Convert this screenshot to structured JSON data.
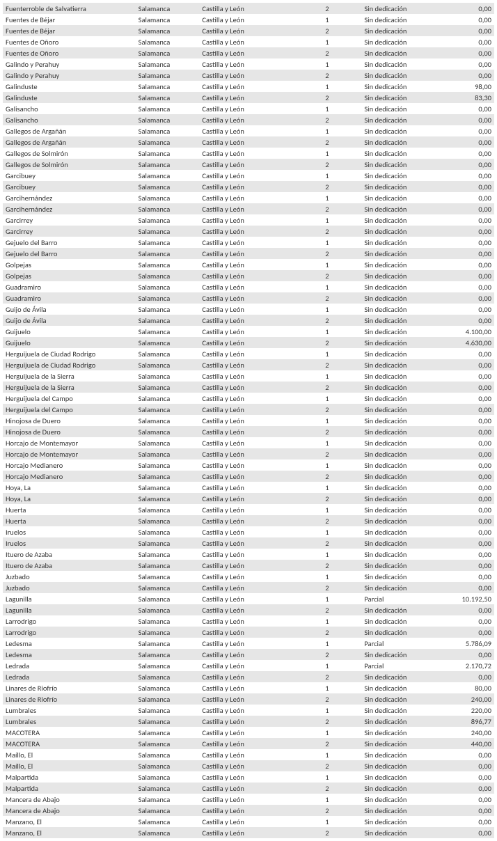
{
  "table": {
    "columns": [
      "municipio",
      "provincia",
      "comunidad",
      "num",
      "dedicacion",
      "importe"
    ],
    "col_align": [
      "left",
      "left",
      "left",
      "center",
      "left",
      "right"
    ],
    "row_stripe_colors": [
      "#e6e6e6",
      "#ffffff"
    ],
    "text_color": "#333333",
    "font_size_pt": 8,
    "rows": [
      [
        "Fuenterroble de Salvatierra",
        "Salamanca",
        "Castilla y León",
        "2",
        "Sin dedicación",
        "0,00"
      ],
      [
        "Fuentes de Béjar",
        "Salamanca",
        "Castilla y León",
        "1",
        "Sin dedicación",
        "0,00"
      ],
      [
        "Fuentes de Béjar",
        "Salamanca",
        "Castilla y León",
        "2",
        "Sin dedicación",
        "0,00"
      ],
      [
        "Fuentes de Oñoro",
        "Salamanca",
        "Castilla y León",
        "1",
        "Sin dedicación",
        "0,00"
      ],
      [
        "Fuentes de Oñoro",
        "Salamanca",
        "Castilla y León",
        "2",
        "Sin dedicación",
        "0,00"
      ],
      [
        "Galindo y Perahuy",
        "Salamanca",
        "Castilla y León",
        "1",
        "Sin dedicación",
        "0,00"
      ],
      [
        "Galindo y Perahuy",
        "Salamanca",
        "Castilla y León",
        "2",
        "Sin dedicación",
        "0,00"
      ],
      [
        "Galinduste",
        "Salamanca",
        "Castilla y León",
        "1",
        "Sin dedicación",
        "98,00"
      ],
      [
        "Galinduste",
        "Salamanca",
        "Castilla y León",
        "2",
        "Sin dedicación",
        "83,30"
      ],
      [
        "Galisancho",
        "Salamanca",
        "Castilla y León",
        "1",
        "Sin dedicación",
        "0,00"
      ],
      [
        "Galisancho",
        "Salamanca",
        "Castilla y León",
        "2",
        "Sin dedicación",
        "0,00"
      ],
      [
        "Gallegos de Argañán",
        "Salamanca",
        "Castilla y León",
        "1",
        "Sin dedicación",
        "0,00"
      ],
      [
        "Gallegos de Argañán",
        "Salamanca",
        "Castilla y León",
        "2",
        "Sin dedicación",
        "0,00"
      ],
      [
        "Gallegos de Solmirón",
        "Salamanca",
        "Castilla y León",
        "1",
        "Sin dedicación",
        "0,00"
      ],
      [
        "Gallegos de Solmirón",
        "Salamanca",
        "Castilla y León",
        "2",
        "Sin dedicación",
        "0,00"
      ],
      [
        "Garcibuey",
        "Salamanca",
        "Castilla y León",
        "1",
        "Sin dedicación",
        "0,00"
      ],
      [
        "Garcibuey",
        "Salamanca",
        "Castilla y León",
        "2",
        "Sin dedicación",
        "0,00"
      ],
      [
        "Garcihernández",
        "Salamanca",
        "Castilla y León",
        "1",
        "Sin dedicación",
        "0,00"
      ],
      [
        "Garcihernández",
        "Salamanca",
        "Castilla y León",
        "2",
        "Sin dedicación",
        "0,00"
      ],
      [
        "Garcirrey",
        "Salamanca",
        "Castilla y León",
        "1",
        "Sin dedicación",
        "0,00"
      ],
      [
        "Garcirrey",
        "Salamanca",
        "Castilla y León",
        "2",
        "Sin dedicación",
        "0,00"
      ],
      [
        "Gejuelo del Barro",
        "Salamanca",
        "Castilla y León",
        "1",
        "Sin dedicación",
        "0,00"
      ],
      [
        "Gejuelo del Barro",
        "Salamanca",
        "Castilla y León",
        "2",
        "Sin dedicación",
        "0,00"
      ],
      [
        "Golpejas",
        "Salamanca",
        "Castilla y León",
        "1",
        "Sin dedicación",
        "0,00"
      ],
      [
        "Golpejas",
        "Salamanca",
        "Castilla y León",
        "2",
        "Sin dedicación",
        "0,00"
      ],
      [
        "Guadramiro",
        "Salamanca",
        "Castilla y León",
        "1",
        "Sin dedicación",
        "0,00"
      ],
      [
        "Guadramiro",
        "Salamanca",
        "Castilla y León",
        "2",
        "Sin dedicación",
        "0,00"
      ],
      [
        "Guijo de Ávila",
        "Salamanca",
        "Castilla y León",
        "1",
        "Sin dedicación",
        "0,00"
      ],
      [
        "Guijo de Ávila",
        "Salamanca",
        "Castilla y León",
        "2",
        "Sin dedicación",
        "0,00"
      ],
      [
        "Guijuelo",
        "Salamanca",
        "Castilla y León",
        "1",
        "Sin dedicación",
        "4.100,00"
      ],
      [
        "Guijuelo",
        "Salamanca",
        "Castilla y León",
        "2",
        "Sin dedicación",
        "4.630,00"
      ],
      [
        "Herguijuela de Ciudad Rodrigo",
        "Salamanca",
        "Castilla y León",
        "1",
        "Sin dedicación",
        "0,00"
      ],
      [
        "Herguijuela de Ciudad Rodrigo",
        "Salamanca",
        "Castilla y León",
        "2",
        "Sin dedicación",
        "0,00"
      ],
      [
        "Herguijuela de la Sierra",
        "Salamanca",
        "Castilla y León",
        "1",
        "Sin dedicación",
        "0,00"
      ],
      [
        "Herguijuela de la Sierra",
        "Salamanca",
        "Castilla y León",
        "2",
        "Sin dedicación",
        "0,00"
      ],
      [
        "Herguijuela del Campo",
        "Salamanca",
        "Castilla y León",
        "1",
        "Sin dedicación",
        "0,00"
      ],
      [
        "Herguijuela del Campo",
        "Salamanca",
        "Castilla y León",
        "2",
        "Sin dedicación",
        "0,00"
      ],
      [
        "Hinojosa de Duero",
        "Salamanca",
        "Castilla y León",
        "1",
        "Sin dedicación",
        "0,00"
      ],
      [
        "Hinojosa de Duero",
        "Salamanca",
        "Castilla y León",
        "2",
        "Sin dedicación",
        "0,00"
      ],
      [
        "Horcajo de Montemayor",
        "Salamanca",
        "Castilla y León",
        "1",
        "Sin dedicación",
        "0,00"
      ],
      [
        "Horcajo de Montemayor",
        "Salamanca",
        "Castilla y León",
        "2",
        "Sin dedicación",
        "0,00"
      ],
      [
        "Horcajo Medianero",
        "Salamanca",
        "Castilla y León",
        "1",
        "Sin dedicación",
        "0,00"
      ],
      [
        "Horcajo Medianero",
        "Salamanca",
        "Castilla y León",
        "2",
        "Sin dedicación",
        "0,00"
      ],
      [
        "Hoya, La",
        "Salamanca",
        "Castilla y León",
        "1",
        "Sin dedicación",
        "0,00"
      ],
      [
        "Hoya, La",
        "Salamanca",
        "Castilla y León",
        "2",
        "Sin dedicación",
        "0,00"
      ],
      [
        "Huerta",
        "Salamanca",
        "Castilla y León",
        "1",
        "Sin dedicación",
        "0,00"
      ],
      [
        "Huerta",
        "Salamanca",
        "Castilla y León",
        "2",
        "Sin dedicación",
        "0,00"
      ],
      [
        "Iruelos",
        "Salamanca",
        "Castilla y León",
        "1",
        "Sin dedicación",
        "0,00"
      ],
      [
        "Iruelos",
        "Salamanca",
        "Castilla y León",
        "2",
        "Sin dedicación",
        "0,00"
      ],
      [
        "Ituero de Azaba",
        "Salamanca",
        "Castilla y León",
        "1",
        "Sin dedicación",
        "0,00"
      ],
      [
        "Ituero de Azaba",
        "Salamanca",
        "Castilla y León",
        "2",
        "Sin dedicación",
        "0,00"
      ],
      [
        "Juzbado",
        "Salamanca",
        "Castilla y León",
        "1",
        "Sin dedicación",
        "0,00"
      ],
      [
        "Juzbado",
        "Salamanca",
        "Castilla y León",
        "2",
        "Sin dedicación",
        "0,00"
      ],
      [
        "Lagunilla",
        "Salamanca",
        "Castilla y León",
        "1",
        "Parcial",
        "10.192,50"
      ],
      [
        "Lagunilla",
        "Salamanca",
        "Castilla y León",
        "2",
        "Sin dedicación",
        "0,00"
      ],
      [
        "Larrodrigo",
        "Salamanca",
        "Castilla y León",
        "1",
        "Sin dedicación",
        "0,00"
      ],
      [
        "Larrodrigo",
        "Salamanca",
        "Castilla y León",
        "2",
        "Sin dedicación",
        "0,00"
      ],
      [
        "Ledesma",
        "Salamanca",
        "Castilla y León",
        "1",
        "Parcial",
        "5.786,09"
      ],
      [
        "Ledesma",
        "Salamanca",
        "Castilla y León",
        "2",
        "Sin dedicación",
        "0,00"
      ],
      [
        "Ledrada",
        "Salamanca",
        "Castilla y León",
        "1",
        "Parcial",
        "2.170,72"
      ],
      [
        "Ledrada",
        "Salamanca",
        "Castilla y León",
        "2",
        "Sin dedicación",
        "0,00"
      ],
      [
        "Linares de Riofrío",
        "Salamanca",
        "Castilla y León",
        "1",
        "Sin dedicación",
        "80,00"
      ],
      [
        "Linares de Riofrío",
        "Salamanca",
        "Castilla y León",
        "2",
        "Sin dedicación",
        "240,00"
      ],
      [
        "Lumbrales",
        "Salamanca",
        "Castilla y León",
        "1",
        "Sin dedicación",
        "220,00"
      ],
      [
        "Lumbrales",
        "Salamanca",
        "Castilla y León",
        "2",
        "Sin dedicación",
        "896,77"
      ],
      [
        "MACOTERA",
        "Salamanca",
        "Castilla y León",
        "1",
        "Sin dedicación",
        "240,00"
      ],
      [
        "MACOTERA",
        "Salamanca",
        "Castilla y León",
        "2",
        "Sin dedicación",
        "440,00"
      ],
      [
        "Maíllo, El",
        "Salamanca",
        "Castilla y León",
        "1",
        "Sin dedicación",
        "0,00"
      ],
      [
        "Maíllo, El",
        "Salamanca",
        "Castilla y León",
        "2",
        "Sin dedicación",
        "0,00"
      ],
      [
        "Malpartida",
        "Salamanca",
        "Castilla y León",
        "1",
        "Sin dedicación",
        "0,00"
      ],
      [
        "Malpartida",
        "Salamanca",
        "Castilla y León",
        "2",
        "Sin dedicación",
        "0,00"
      ],
      [
        "Mancera de Abajo",
        "Salamanca",
        "Castilla y León",
        "1",
        "Sin dedicación",
        "0,00"
      ],
      [
        "Mancera de Abajo",
        "Salamanca",
        "Castilla y León",
        "2",
        "Sin dedicación",
        "0,00"
      ],
      [
        "Manzano, El",
        "Salamanca",
        "Castilla y León",
        "1",
        "Sin dedicación",
        "0,00"
      ],
      [
        "Manzano, El",
        "Salamanca",
        "Castilla y León",
        "2",
        "Sin dedicación",
        "0,00"
      ]
    ]
  }
}
